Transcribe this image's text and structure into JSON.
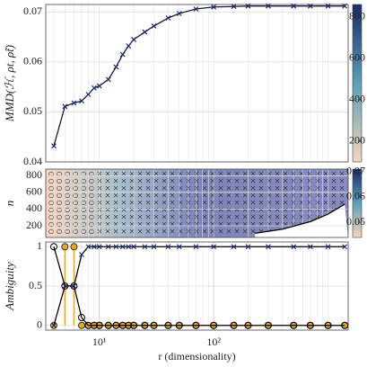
{
  "chart_data": [
    {
      "type": "line",
      "ylabel": "MMD(ℋ, ρt, ρ̂t)",
      "x": [
        4,
        5,
        6,
        7,
        8,
        9,
        10,
        12,
        14,
        16,
        18,
        20,
        25,
        30,
        40,
        50,
        70,
        100,
        150,
        200,
        300,
        500,
        700,
        1000,
        1400
      ],
      "series": [
        {
          "color": "#1a1a3a",
          "marker": "x",
          "values": [
            0.0432,
            0.0511,
            0.0518,
            0.0522,
            0.0535,
            0.0548,
            0.0552,
            0.0565,
            0.059,
            0.0615,
            0.0632,
            0.0645,
            0.066,
            0.0672,
            0.0688,
            0.0697,
            0.0706,
            0.071,
            0.0711,
            0.0712,
            0.0712,
            0.0712,
            0.0712,
            0.0712,
            0.0712
          ]
        }
      ],
      "xlim": [
        3.4,
        1500
      ],
      "xscale": "log",
      "ylim": [
        0.04,
        0.0715
      ],
      "yticks": [
        {
          "value": 0.04,
          "label": "0.04"
        },
        0.05,
        0.06,
        0.07
      ],
      "grid": true,
      "colorbar": {
        "lim": [
          100,
          860
        ],
        "ticks": [
          200,
          400,
          600,
          800
        ],
        "colors": [
          "#f7d3bd",
          "#5aa0b8",
          "#1b2a6b"
        ]
      }
    },
    {
      "type": "line",
      "ylabel": "n",
      "x": [
        230,
        400,
        700,
        1000,
        1400
      ],
      "series": [
        {
          "color": "#000000",
          "marker": "none",
          "values": [
            110,
            160,
            250,
            340,
            460
          ]
        }
      ],
      "xlim": [
        3.4,
        1500
      ],
      "xscale": "log",
      "ylim": [
        60,
        880
      ],
      "yticks": [
        200,
        400,
        600,
        800
      ],
      "grid": true,
      "colorbar": {
        "lim": [
          0.044,
          0.071
        ],
        "ticks": [
          0.05,
          0.06,
          0.07
        ],
        "colors": [
          "#f7d3bd",
          "#5aa0b8",
          "#1b2a6b"
        ]
      }
    },
    {
      "type": "line",
      "ylabel": "Ambiguity",
      "xlabel": "r (dimensionality)",
      "x": [
        4,
        5,
        6,
        7,
        8,
        9,
        10,
        12,
        14,
        16,
        18,
        20,
        25,
        30,
        40,
        50,
        70,
        100,
        150,
        200,
        300,
        500,
        700,
        1000,
        1400
      ],
      "series": [
        {
          "color": "#e8a92a",
          "marker": "circle",
          "stem": true,
          "values": [
            0,
            1,
            1,
            0,
            0,
            0,
            0,
            0,
            0,
            0,
            0,
            0,
            0,
            0,
            0,
            0,
            0,
            0,
            0,
            0,
            0,
            0,
            0,
            0,
            0
          ]
        },
        {
          "color": "#000000",
          "marker": "circle",
          "values": [
            1,
            0.5,
            0.5,
            0.1,
            0,
            0,
            0,
            0,
            0,
            0,
            0,
            0,
            0,
            0,
            0,
            0,
            0,
            0,
            0,
            0,
            0,
            0,
            0,
            0,
            0
          ]
        },
        {
          "color": "#000000",
          "marker": "x",
          "values": [
            0,
            0.5,
            0.5,
            0.9,
            1,
            1,
            1,
            1,
            1,
            1,
            1,
            1,
            1,
            1,
            1,
            1,
            1,
            1,
            1,
            1,
            1,
            1,
            1,
            1,
            1
          ]
        }
      ],
      "xlim": [
        3.4,
        1500
      ],
      "xscale": "log",
      "xticks": [
        {
          "value": 10,
          "label": "10¹"
        },
        {
          "value": 100,
          "label": "10²"
        }
      ],
      "ylim": [
        -0.06,
        1.06
      ],
      "yticks": [
        0,
        0.5,
        1
      ],
      "grid": true
    }
  ]
}
